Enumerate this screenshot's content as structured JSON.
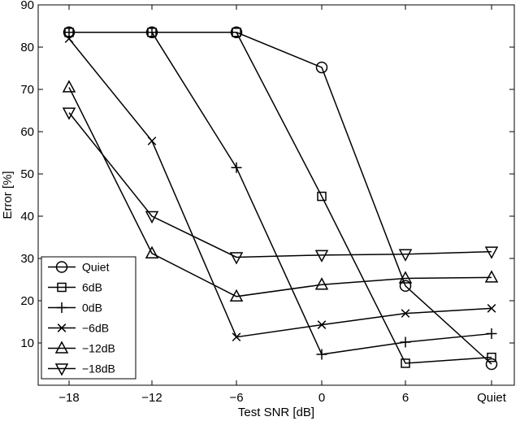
{
  "chart_data": {
    "type": "line",
    "title": "",
    "xlabel": "Test SNR [dB]",
    "ylabel": "Error [%]",
    "categories": [
      "−18",
      "−12",
      "−6",
      "0",
      "6",
      "Quiet"
    ],
    "ylim": [
      0,
      90
    ],
    "yticks": [
      10,
      20,
      30,
      40,
      50,
      60,
      70,
      80,
      90
    ],
    "grid": false,
    "legend_position": "bottom-left",
    "series": [
      {
        "name": "Quiet",
        "marker": "circle",
        "values": [
          83.5,
          83.5,
          83.5,
          75.2,
          23.5,
          5.0
        ]
      },
      {
        "name": "6dB",
        "marker": "square",
        "values": [
          83.5,
          83.5,
          83.5,
          44.7,
          5.2,
          6.6
        ]
      },
      {
        "name": "0dB",
        "marker": "plus",
        "values": [
          83.5,
          83.5,
          51.5,
          7.3,
          10.2,
          12.2
        ]
      },
      {
        "name": "−6dB",
        "marker": "x",
        "values": [
          82.0,
          57.8,
          11.4,
          14.3,
          17.0,
          18.2
        ]
      },
      {
        "name": "−12dB",
        "marker": "triangle-up",
        "values": [
          70.5,
          31.2,
          21.0,
          23.8,
          25.3,
          25.5
        ]
      },
      {
        "name": "−18dB",
        "marker": "triangle-down",
        "values": [
          64.5,
          40.0,
          30.3,
          30.8,
          31.0,
          31.6
        ]
      }
    ]
  }
}
